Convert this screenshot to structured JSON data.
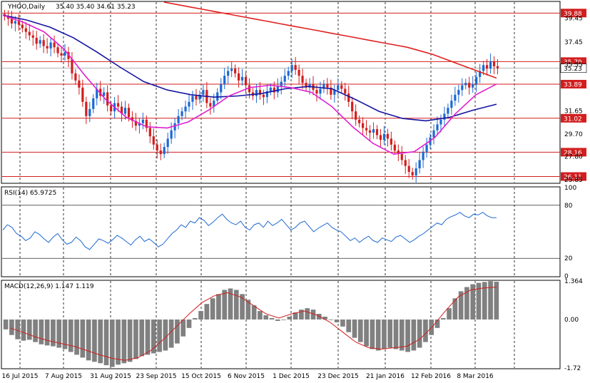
{
  "chart_data": [
    {
      "type": "candlestick",
      "panel": "price",
      "symbol_label": "YHOO,Daily",
      "ohlc_label": "35.40 35.40 34.61 35.23",
      "y_ticks": [
        "39.45",
        "37.45",
        "35.55",
        "31.65",
        "29.70",
        "27.80",
        "25.85"
      ],
      "ylim": [
        25.6,
        40.8
      ],
      "levels": [
        39.88,
        35.79,
        33.89,
        31.02,
        28.16,
        26.11
      ],
      "level_labels": [
        "39.88",
        "35.79",
        "33.89",
        "31.02",
        "28.16",
        "26.11"
      ],
      "current_price": 35.23,
      "current_price_label": "35.23",
      "x_labels": [
        "16 Jul 2015",
        "7 Aug 2015",
        "31 Aug 2015",
        "23 Sep 2015",
        "15 Oct 2015",
        "6 Nov 2015",
        "1 Dec 2015",
        "23 Dec 2015",
        "21 Jan 2016",
        "12 Feb 2016",
        "8 Mar 2016"
      ],
      "closes": [
        39.6,
        39.4,
        39.0,
        39.2,
        38.9,
        38.6,
        38.3,
        38.0,
        37.8,
        37.3,
        37.6,
        37.1,
        36.9,
        37.4,
        37.0,
        36.5,
        36.3,
        36.6,
        36.0,
        34.8,
        34.2,
        33.6,
        32.4,
        31.2,
        31.8,
        32.7,
        33.5,
        32.9,
        33.2,
        32.1,
        31.6,
        32.3,
        32.0,
        31.4,
        31.9,
        31.1,
        30.8,
        30.4,
        30.6,
        30.9,
        30.2,
        29.5,
        28.8,
        28.3,
        28.0,
        28.6,
        29.3,
        30.0,
        30.6,
        31.2,
        31.6,
        32.0,
        32.4,
        32.9,
        32.6,
        33.0,
        33.4,
        32.3,
        32.0,
        32.5,
        33.2,
        33.9,
        34.6,
        35.0,
        35.2,
        34.8,
        34.2,
        34.5,
        33.8,
        33.2,
        32.9,
        33.4,
        33.0,
        32.8,
        33.3,
        33.6,
        33.2,
        33.7,
        34.1,
        34.6,
        35.0,
        35.5,
        35.1,
        34.6,
        34.0,
        33.6,
        33.9,
        33.4,
        33.1,
        33.5,
        33.9,
        33.6,
        33.0,
        33.4,
        33.8,
        33.5,
        33.1,
        32.4,
        31.6,
        30.9,
        30.6,
        30.2,
        30.0,
        29.8,
        30.1,
        29.6,
        29.2,
        29.7,
        29.3,
        28.8,
        28.3,
        28.0,
        27.5,
        27.0,
        26.5,
        26.2,
        26.8,
        27.5,
        28.2,
        28.8,
        29.4,
        30.0,
        30.5,
        30.9,
        31.4,
        31.9,
        32.5,
        33.0,
        33.4,
        33.8,
        34.0,
        33.6,
        33.9,
        34.5,
        35.0,
        35.5,
        35.2,
        35.8,
        35.4,
        35.23
      ],
      "ma_red": [
        40.8,
        40.6,
        40.4,
        40.2,
        40.0,
        39.8,
        39.6,
        39.4,
        39.2,
        39.0,
        38.8,
        38.6,
        38.4,
        38.2,
        38.0,
        37.8,
        37.6,
        37.4,
        37.2,
        37.0,
        36.7,
        36.4,
        36.0,
        35.6,
        35.2,
        34.8,
        34.4
      ],
      "ma_blue": [
        39.7,
        39.3,
        38.7,
        37.8,
        36.6,
        35.3,
        34.1,
        33.4,
        33.0,
        32.8,
        32.9,
        33.1,
        33.5,
        33.7,
        33.5,
        32.6,
        31.6,
        31.0,
        30.8,
        31.1,
        31.7,
        32.2
      ],
      "ma_magenta": [
        39.7,
        39.1,
        38.3,
        36.8,
        34.6,
        32.6,
        31.1,
        30.3,
        30.2,
        30.7,
        31.7,
        32.9,
        33.6,
        33.8,
        33.6,
        33.2,
        32.0,
        30.3,
        28.9,
        28.0,
        28.2,
        29.4,
        31.4,
        33.0,
        33.9
      ],
      "series_colors": {
        "up": "#1e69d2",
        "down": "#d21e1e",
        "ma_red": "#e0201e",
        "ma_blue": "#1414a0",
        "ma_magenta": "#e020d0",
        "level": "#d21e1e"
      }
    },
    {
      "type": "line",
      "panel": "rsi",
      "label": "RSI(14) 65.9725",
      "y_ticks": [
        "100",
        "80",
        "20",
        "0"
      ],
      "ylim": [
        0,
        100
      ],
      "levels": [
        80,
        20
      ],
      "values": [
        52,
        58,
        55,
        48,
        45,
        40,
        43,
        50,
        47,
        42,
        38,
        44,
        48,
        41,
        36,
        38,
        44,
        40,
        33,
        30,
        36,
        42,
        40,
        37,
        41,
        46,
        43,
        39,
        35,
        41,
        45,
        39,
        42,
        38,
        33,
        36,
        42,
        48,
        52,
        58,
        55,
        62,
        60,
        66,
        63,
        57,
        61,
        66,
        70,
        64,
        60,
        58,
        62,
        55,
        52,
        58,
        60,
        55,
        62,
        57,
        60,
        64,
        58,
        52,
        55,
        60,
        62,
        56,
        50,
        54,
        57,
        60,
        55,
        52,
        50,
        45,
        40,
        43,
        38,
        42,
        45,
        40,
        38,
        43,
        41,
        39,
        44,
        46,
        42,
        38,
        41,
        45,
        48,
        52,
        56,
        60,
        58,
        64,
        67,
        69,
        72,
        68,
        66,
        70,
        69,
        72,
        68,
        66,
        65.97
      ],
      "color": "#1e69d2"
    },
    {
      "type": "histogram",
      "panel": "macd",
      "label": "MACD(12,26,9) 1.147 1.119",
      "y_ticks": [
        "1.364",
        "0.00",
        "-1.72"
      ],
      "ylim": [
        -1.72,
        1.364
      ],
      "histogram": [
        -0.35,
        -0.55,
        -0.7,
        -0.75,
        -0.72,
        -0.8,
        -0.88,
        -0.92,
        -0.95,
        -1.0,
        -1.05,
        -1.15,
        -1.25,
        -1.35,
        -1.45,
        -1.5,
        -1.55,
        -1.62,
        -1.68,
        -1.6,
        -1.55,
        -1.5,
        -1.4,
        -1.3,
        -1.25,
        -1.2,
        -1.15,
        -1.1,
        -1.0,
        -0.85,
        -0.6,
        -0.3,
        0.05,
        0.3,
        0.55,
        0.75,
        0.9,
        1.05,
        1.1,
        1.05,
        0.9,
        0.7,
        0.5,
        0.3,
        0.15,
        0.05,
        -0.05,
        0.0,
        0.1,
        0.25,
        0.35,
        0.4,
        0.35,
        0.2,
        0.1,
        0.0,
        -0.1,
        -0.25,
        -0.45,
        -0.65,
        -0.8,
        -0.95,
        -1.05,
        -1.1,
        -1.05,
        -1.0,
        -1.05,
        -1.1,
        -1.15,
        -1.1,
        -1.0,
        -0.8,
        -0.55,
        -0.3,
        0.05,
        0.4,
        0.75,
        1.0,
        1.15,
        1.25,
        1.3,
        1.33,
        1.36,
        1.34
      ],
      "signal": [
        -0.3,
        -0.45,
        -0.62,
        -0.75,
        -0.85,
        -0.95,
        -1.1,
        -1.25,
        -1.38,
        -1.45,
        -1.35,
        -1.1,
        -0.7,
        -0.25,
        0.2,
        0.6,
        0.85,
        0.95,
        0.8,
        0.5,
        0.2,
        0.05,
        0.2,
        0.3,
        0.15,
        -0.1,
        -0.45,
        -0.8,
        -1.0,
        -1.05,
        -1.0,
        -0.95,
        -0.7,
        -0.25,
        0.3,
        0.8,
        1.05,
        1.12,
        1.15
      ],
      "signal_color": "#d21e1e",
      "bar_color": "#808080"
    }
  ]
}
